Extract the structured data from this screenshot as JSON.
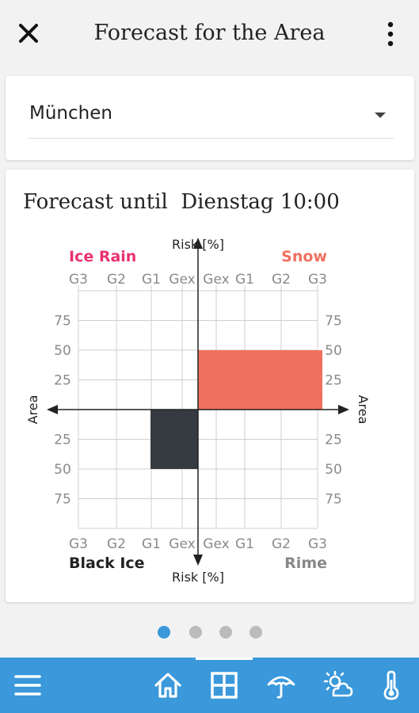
{
  "header": {
    "title": "Forecast for the Area",
    "close_icon": "close-icon",
    "more_icon": "more-vert-icon"
  },
  "city_select": {
    "value": "München"
  },
  "forecast": {
    "prefix": "Forecast until ",
    "date": "Dienstag 10:00"
  },
  "chart_data": {
    "type": "bar",
    "y_axis_label": "Risk [%]",
    "x_axis_label": "Area",
    "quadrants": {
      "top_left": "Ice Rain",
      "top_right": "Snow",
      "bottom_left": "Black Ice",
      "bottom_right": "Rime"
    },
    "risk_ticks_left": [
      "G3",
      "G2",
      "G1",
      "Gex"
    ],
    "risk_ticks_right": [
      "Gex",
      "G1",
      "G2",
      "G3"
    ],
    "area_ticks": [
      "75",
      "50",
      "25"
    ],
    "area_range": [
      0,
      100
    ],
    "bars": [
      {
        "quadrant": "top_right",
        "risk_from": "Gex",
        "risk_to": "G3",
        "area": 50,
        "color": "#f07060"
      },
      {
        "quadrant": "bottom_left",
        "risk_from": "Gex",
        "risk_to": "G1",
        "area": 50,
        "color": "#353b40"
      }
    ],
    "colors": {
      "ice_rain": "#e8336f",
      "snow": "#f07060",
      "black_ice": "#222222",
      "rime": "#888888"
    },
    "grid": true
  },
  "pagination": {
    "count": 4,
    "active": 0,
    "active_color": "#3a98db"
  },
  "bottom_nav": {
    "color": "#3a98db",
    "items": [
      "menu-icon",
      "home-icon",
      "grid-icon",
      "umbrella-icon",
      "weather-icon",
      "thermometer-icon"
    ],
    "selected": 2
  }
}
